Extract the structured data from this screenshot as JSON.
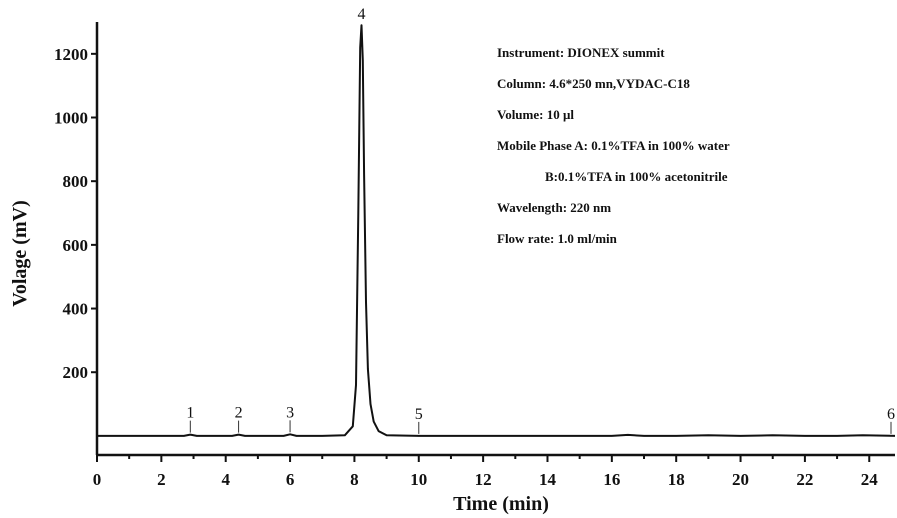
{
  "chart_data": {
    "type": "line",
    "xlabel": "Time (min)",
    "ylabel": "Volage (mV)",
    "xlim": [
      0,
      24.8
    ],
    "ylim": [
      -60,
      1300
    ],
    "x_ticks": [
      0,
      2,
      4,
      6,
      8,
      10,
      12,
      14,
      16,
      18,
      20,
      22,
      24
    ],
    "y_ticks": [
      200,
      400,
      600,
      800,
      1000,
      1200
    ],
    "grid": false,
    "baseline": 0,
    "series": [
      {
        "x": [
          0,
          2.0,
          2.7,
          2.9,
          3.1,
          3.5,
          4.2,
          4.4,
          4.6,
          5.0,
          5.8,
          6.0,
          6.2,
          7.0,
          7.7,
          7.95,
          8.05,
          8.12,
          8.18,
          8.22,
          8.26,
          8.3,
          8.36,
          8.42,
          8.5,
          8.6,
          8.75,
          9.0,
          10.0,
          12.0,
          14.0,
          16.0,
          16.5,
          17.0,
          18.0,
          19.0,
          20.0,
          21.0,
          22.0,
          23.0,
          23.8,
          24.8
        ],
        "y": [
          0,
          0,
          0,
          4,
          0,
          0,
          0,
          4,
          0,
          0,
          0,
          5,
          0,
          0,
          2,
          30,
          160,
          700,
          1220,
          1290,
          1180,
          820,
          420,
          210,
          100,
          45,
          15,
          2,
          0,
          0,
          0,
          0,
          3,
          0,
          0,
          2,
          0,
          2,
          0,
          0,
          2,
          0
        ]
      }
    ],
    "peak_labels": [
      {
        "label": "1",
        "x": 2.9,
        "y": 4
      },
      {
        "label": "2",
        "x": 4.4,
        "y": 4
      },
      {
        "label": "3",
        "x": 6.0,
        "y": 5
      },
      {
        "label": "4",
        "x": 8.22,
        "y": 1290
      },
      {
        "label": "5",
        "x": 10.0,
        "y": 0
      },
      {
        "label": "6",
        "x": 24.8,
        "y": 0
      }
    ],
    "annotations": [
      "Instrument: DIONEX summit",
      "Column: 4.6*250 mn,VYDAC-C18",
      "Volume: 10 μl",
      "Mobile Phase A: 0.1%TFA in 100% water",
      "B:0.1%TFA in 100% acetonitrile",
      "Wavelength: 220 nm",
      "Flow rate: 1.0 ml/min"
    ],
    "colors": {
      "line": "#111111",
      "axes": "#111111"
    }
  }
}
